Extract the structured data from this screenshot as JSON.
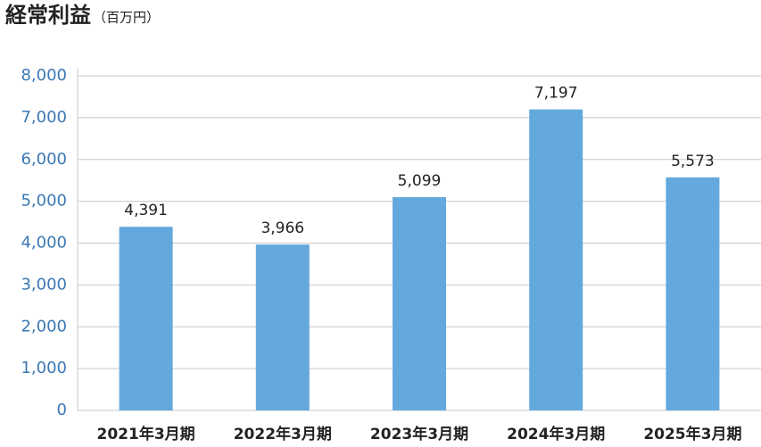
{
  "chart_data": {
    "type": "bar",
    "title": "経常利益",
    "subtitle": "（百万円）",
    "categories": [
      "2021年3月期",
      "2022年3月期",
      "2023年3月期",
      "2024年3月期",
      "2025年3月期"
    ],
    "values": [
      4391,
      3966,
      5099,
      7197,
      5573
    ],
    "value_labels": [
      "4,391",
      "3,966",
      "5,099",
      "7,197",
      "5,573"
    ],
    "color": "#64a9dd",
    "ylim": [
      0,
      8000
    ],
    "yticks": [
      0,
      {
        "value": 1000,
        "label": "1,000"
      },
      {
        "value": 2000,
        "label": "2,000"
      },
      {
        "value": 3000,
        "label": "3,000"
      },
      {
        "value": 4000,
        "label": "4,000"
      },
      {
        "value": 5000,
        "label": "5,000"
      },
      {
        "value": 6000,
        "label": "6,000"
      },
      {
        "value": 7000,
        "label": "7,000"
      },
      {
        "value": 8000,
        "label": "8,000"
      }
    ],
    "grid": true
  }
}
